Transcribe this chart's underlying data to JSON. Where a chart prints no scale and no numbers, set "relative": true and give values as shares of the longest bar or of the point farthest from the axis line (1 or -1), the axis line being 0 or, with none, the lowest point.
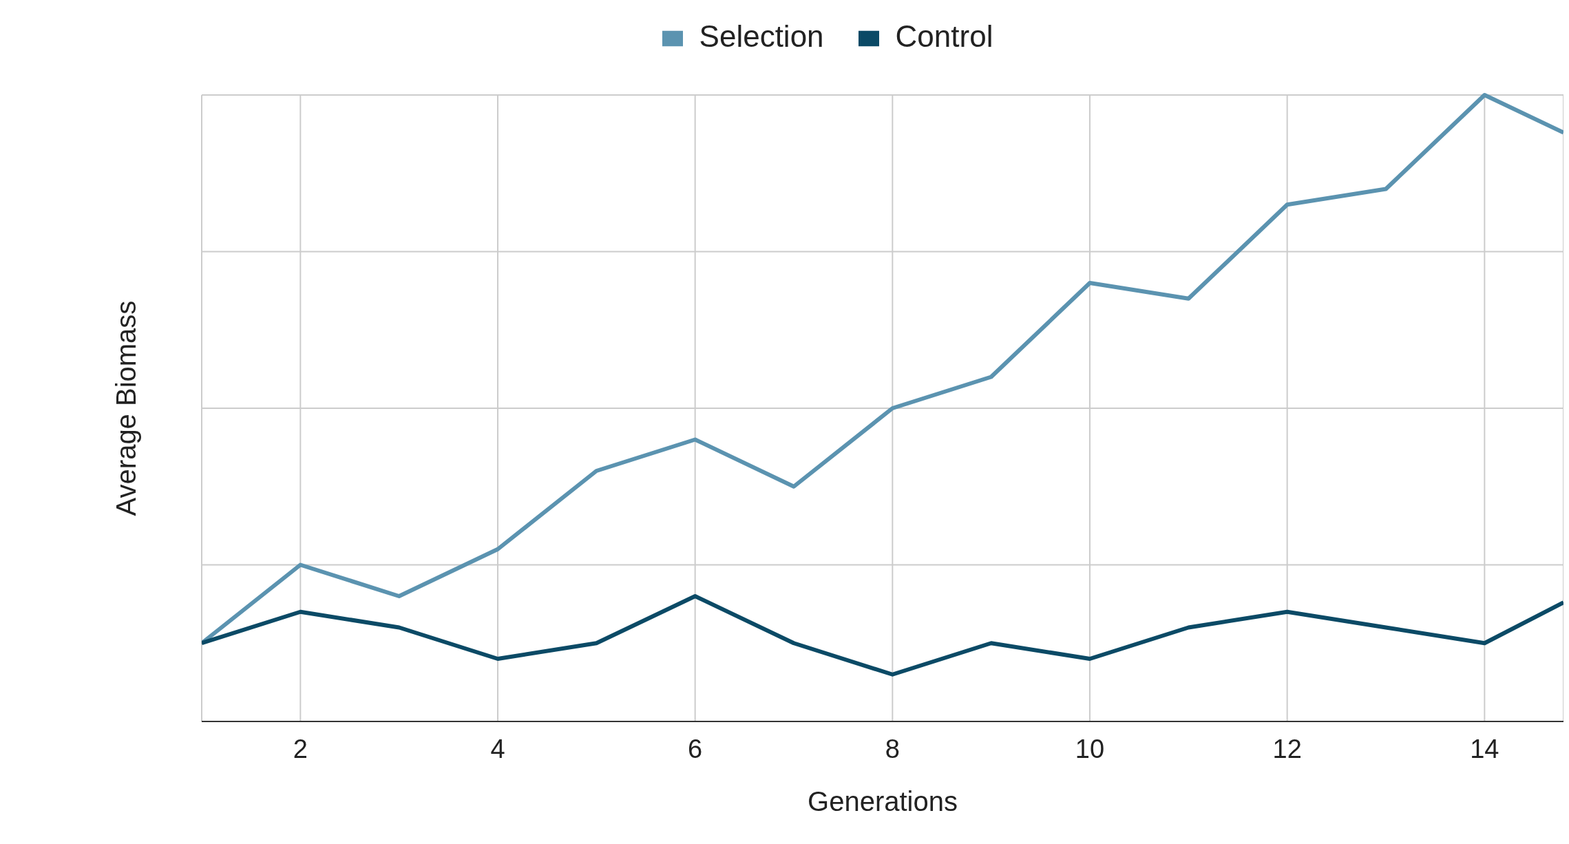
{
  "chart_data": {
    "type": "line",
    "xlabel": "Generations",
    "ylabel": "Average Biomass",
    "relative": true,
    "x": [
      1,
      2,
      3,
      4,
      5,
      6,
      7,
      8,
      9,
      10,
      11,
      12,
      13,
      14,
      14.8
    ],
    "xlim": [
      1,
      14.8
    ],
    "xticks": [
      2,
      4,
      6,
      8,
      10,
      12,
      14
    ],
    "series": [
      {
        "name": "Selection",
        "color": "#5b93b0",
        "values": [
          0.125,
          0.25,
          0.2,
          0.275,
          0.4,
          0.45,
          0.375,
          0.5,
          0.55,
          0.7,
          0.675,
          0.825,
          0.85,
          1,
          0.94
        ]
      },
      {
        "name": "Control",
        "color": "#0b4a66",
        "values": [
          0.125,
          0.175,
          0.15,
          0.1,
          0.125,
          0.2,
          0.125,
          0.075,
          0.125,
          0.1,
          0.15,
          0.175,
          0.15,
          0.125,
          0.19
        ]
      }
    ],
    "grid": true,
    "legend": "top",
    "marker": "none",
    "line_style": "solid"
  }
}
